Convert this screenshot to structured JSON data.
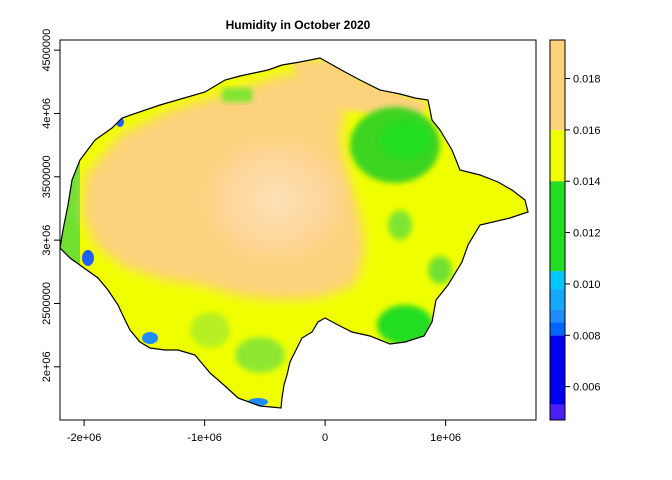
{
  "chart_data": {
    "type": "heatmap",
    "title": "Humidity in October 2020",
    "xlabel": "",
    "ylabel": "",
    "xlim": [
      -2200000,
      1750000
    ],
    "ylim": [
      1580000,
      4580000
    ],
    "x_ticks": [
      {
        "value": -2000000,
        "label": "-2e+06"
      },
      {
        "value": -1000000,
        "label": "-1e+06"
      },
      {
        "value": 0,
        "label": "0"
      },
      {
        "value": 1000000,
        "label": "1e+06"
      }
    ],
    "y_ticks": [
      {
        "value": 2000000,
        "label": "2e+06"
      },
      {
        "value": 2500000,
        "label": "2500000"
      },
      {
        "value": 3000000,
        "label": "3e+06"
      },
      {
        "value": 3500000,
        "label": "3500000"
      },
      {
        "value": 4000000,
        "label": "4e+06"
      },
      {
        "value": 4500000,
        "label": "4500000"
      }
    ],
    "legend": {
      "placement": "right",
      "range": [
        0.0047,
        0.0195
      ],
      "ticks": [
        0.006,
        0.008,
        0.01,
        0.012,
        0.014,
        0.016,
        0.018
      ],
      "tick_labels": [
        "0.006",
        "0.008",
        "0.010",
        "0.012",
        "0.014",
        "0.016",
        "0.018"
      ],
      "colors": [
        {
          "from": 0.0047,
          "to": 0.0053,
          "color": "#4a1ef5"
        },
        {
          "from": 0.0053,
          "to": 0.008,
          "color": "#0000f0"
        },
        {
          "from": 0.008,
          "to": 0.0085,
          "color": "#0066ff"
        },
        {
          "from": 0.0085,
          "to": 0.009,
          "color": "#1e8cff"
        },
        {
          "from": 0.009,
          "to": 0.0098,
          "color": "#14a8ff"
        },
        {
          "from": 0.0098,
          "to": 0.0105,
          "color": "#00c8ff"
        },
        {
          "from": 0.0105,
          "to": 0.014,
          "color": "#22dd22"
        },
        {
          "from": 0.014,
          "to": 0.016,
          "color": "#f0ff00"
        },
        {
          "from": 0.016,
          "to": 0.0195,
          "color": "#fdd27d"
        }
      ]
    }
  }
}
